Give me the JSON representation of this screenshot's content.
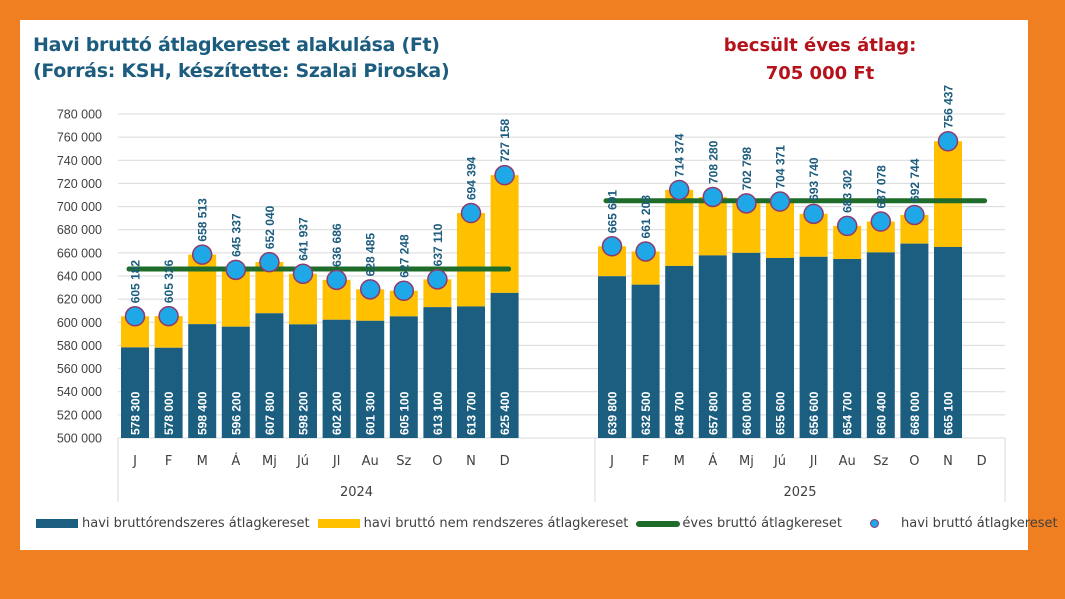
{
  "title_lines": [
    "Havi bruttó átlagkereset alakulása (Ft)",
    "(Forrás: KSH, készítette: Szalai Piroska)"
  ],
  "annotation": {
    "line1": "becsült éves átlag:",
    "line2": "705 000 Ft"
  },
  "colors": {
    "background_frame": "#F07F22",
    "regular": "#1B5E80",
    "irregular": "#FFC000",
    "annual_line": "#1E6B2A",
    "marker_fill": "#1FA8E8",
    "marker_edge": "#8E3A6E",
    "label_dark": "#1C5C7E",
    "annotation": "#B5121B"
  },
  "chart_data": {
    "type": "bar",
    "subtype": "stacked-bar-with-line-and-markers",
    "title": "Havi bruttó átlagkereset alakulása (Ft)",
    "subtitle": "(Forrás: KSH, készítette: Szalai Piroska)",
    "xlabel": "",
    "ylabel": "",
    "ylim": [
      500000,
      780000
    ],
    "yticks": [
      500000,
      520000,
      540000,
      560000,
      580000,
      600000,
      620000,
      640000,
      660000,
      680000,
      700000,
      720000,
      740000,
      760000,
      780000
    ],
    "ytick_labels": [
      "500 000",
      "520 000",
      "540 000",
      "560 000",
      "580 000",
      "600 000",
      "620 000",
      "640 000",
      "660 000",
      "680 000",
      "700 000",
      "720 000",
      "740 000",
      "760 000",
      "780 000"
    ],
    "grid": true,
    "legend_position": "bottom",
    "categories": [
      "J",
      "F",
      "M",
      "Á",
      "Mj",
      "Jú",
      "Jl",
      "Au",
      "Sz",
      "O",
      "N",
      "D"
    ],
    "groups": [
      {
        "name": "2024",
        "regular": [
          578300,
          578000,
          598400,
          596200,
          607800,
          598200,
          602200,
          601300,
          605100,
          613100,
          613700,
          625400
        ],
        "regular_labels": [
          "578 300",
          "578 000",
          "598 400",
          "596 200",
          "607 800",
          "598 200",
          "602 200",
          "601 300",
          "605 100",
          "613 100",
          "613 700",
          "625 400"
        ],
        "total": [
          605182,
          605326,
          658513,
          645337,
          652040,
          641937,
          636686,
          628485,
          627248,
          637110,
          694394,
          727158
        ],
        "total_labels": [
          "605 182",
          "605 326",
          "658 513",
          "645 337",
          "652 040",
          "641 937",
          "636 686",
          "628 485",
          "627 248",
          "637 110",
          "694 394",
          "727 158"
        ],
        "annual_average": 646000
      },
      {
        "name": "2025",
        "regular": [
          639800,
          632500,
          648700,
          657800,
          660000,
          655600,
          656600,
          654700,
          660400,
          668000,
          665100,
          null
        ],
        "regular_labels": [
          "639 800",
          "632 500",
          "648 700",
          "657 800",
          "660 000",
          "655 600",
          "656 600",
          "654 700",
          "660 400",
          "668 000",
          "665 100",
          ""
        ],
        "total": [
          665691,
          661208,
          714374,
          708280,
          702798,
          704371,
          693740,
          683302,
          687078,
          692744,
          756437,
          null
        ],
        "total_labels": [
          "665 691",
          "661 208",
          "714 374",
          "708 280",
          "702 798",
          "704 371",
          "693 740",
          "683 302",
          "687 078",
          "692 744",
          "756 437",
          ""
        ],
        "annual_average": 705000
      }
    ],
    "legend": [
      {
        "name": "havi bruttórendszeres átlagkereset",
        "kind": "bar",
        "color": "#1B5E80"
      },
      {
        "name": "havi bruttó nem rendszeres átlagkereset",
        "kind": "bar",
        "color": "#FFC000"
      },
      {
        "name": "éves bruttó átlagkereset",
        "kind": "line",
        "color": "#1E6B2A"
      },
      {
        "name": "havi bruttó átlagkereset",
        "kind": "marker",
        "color": "#1FA8E8"
      }
    ]
  }
}
